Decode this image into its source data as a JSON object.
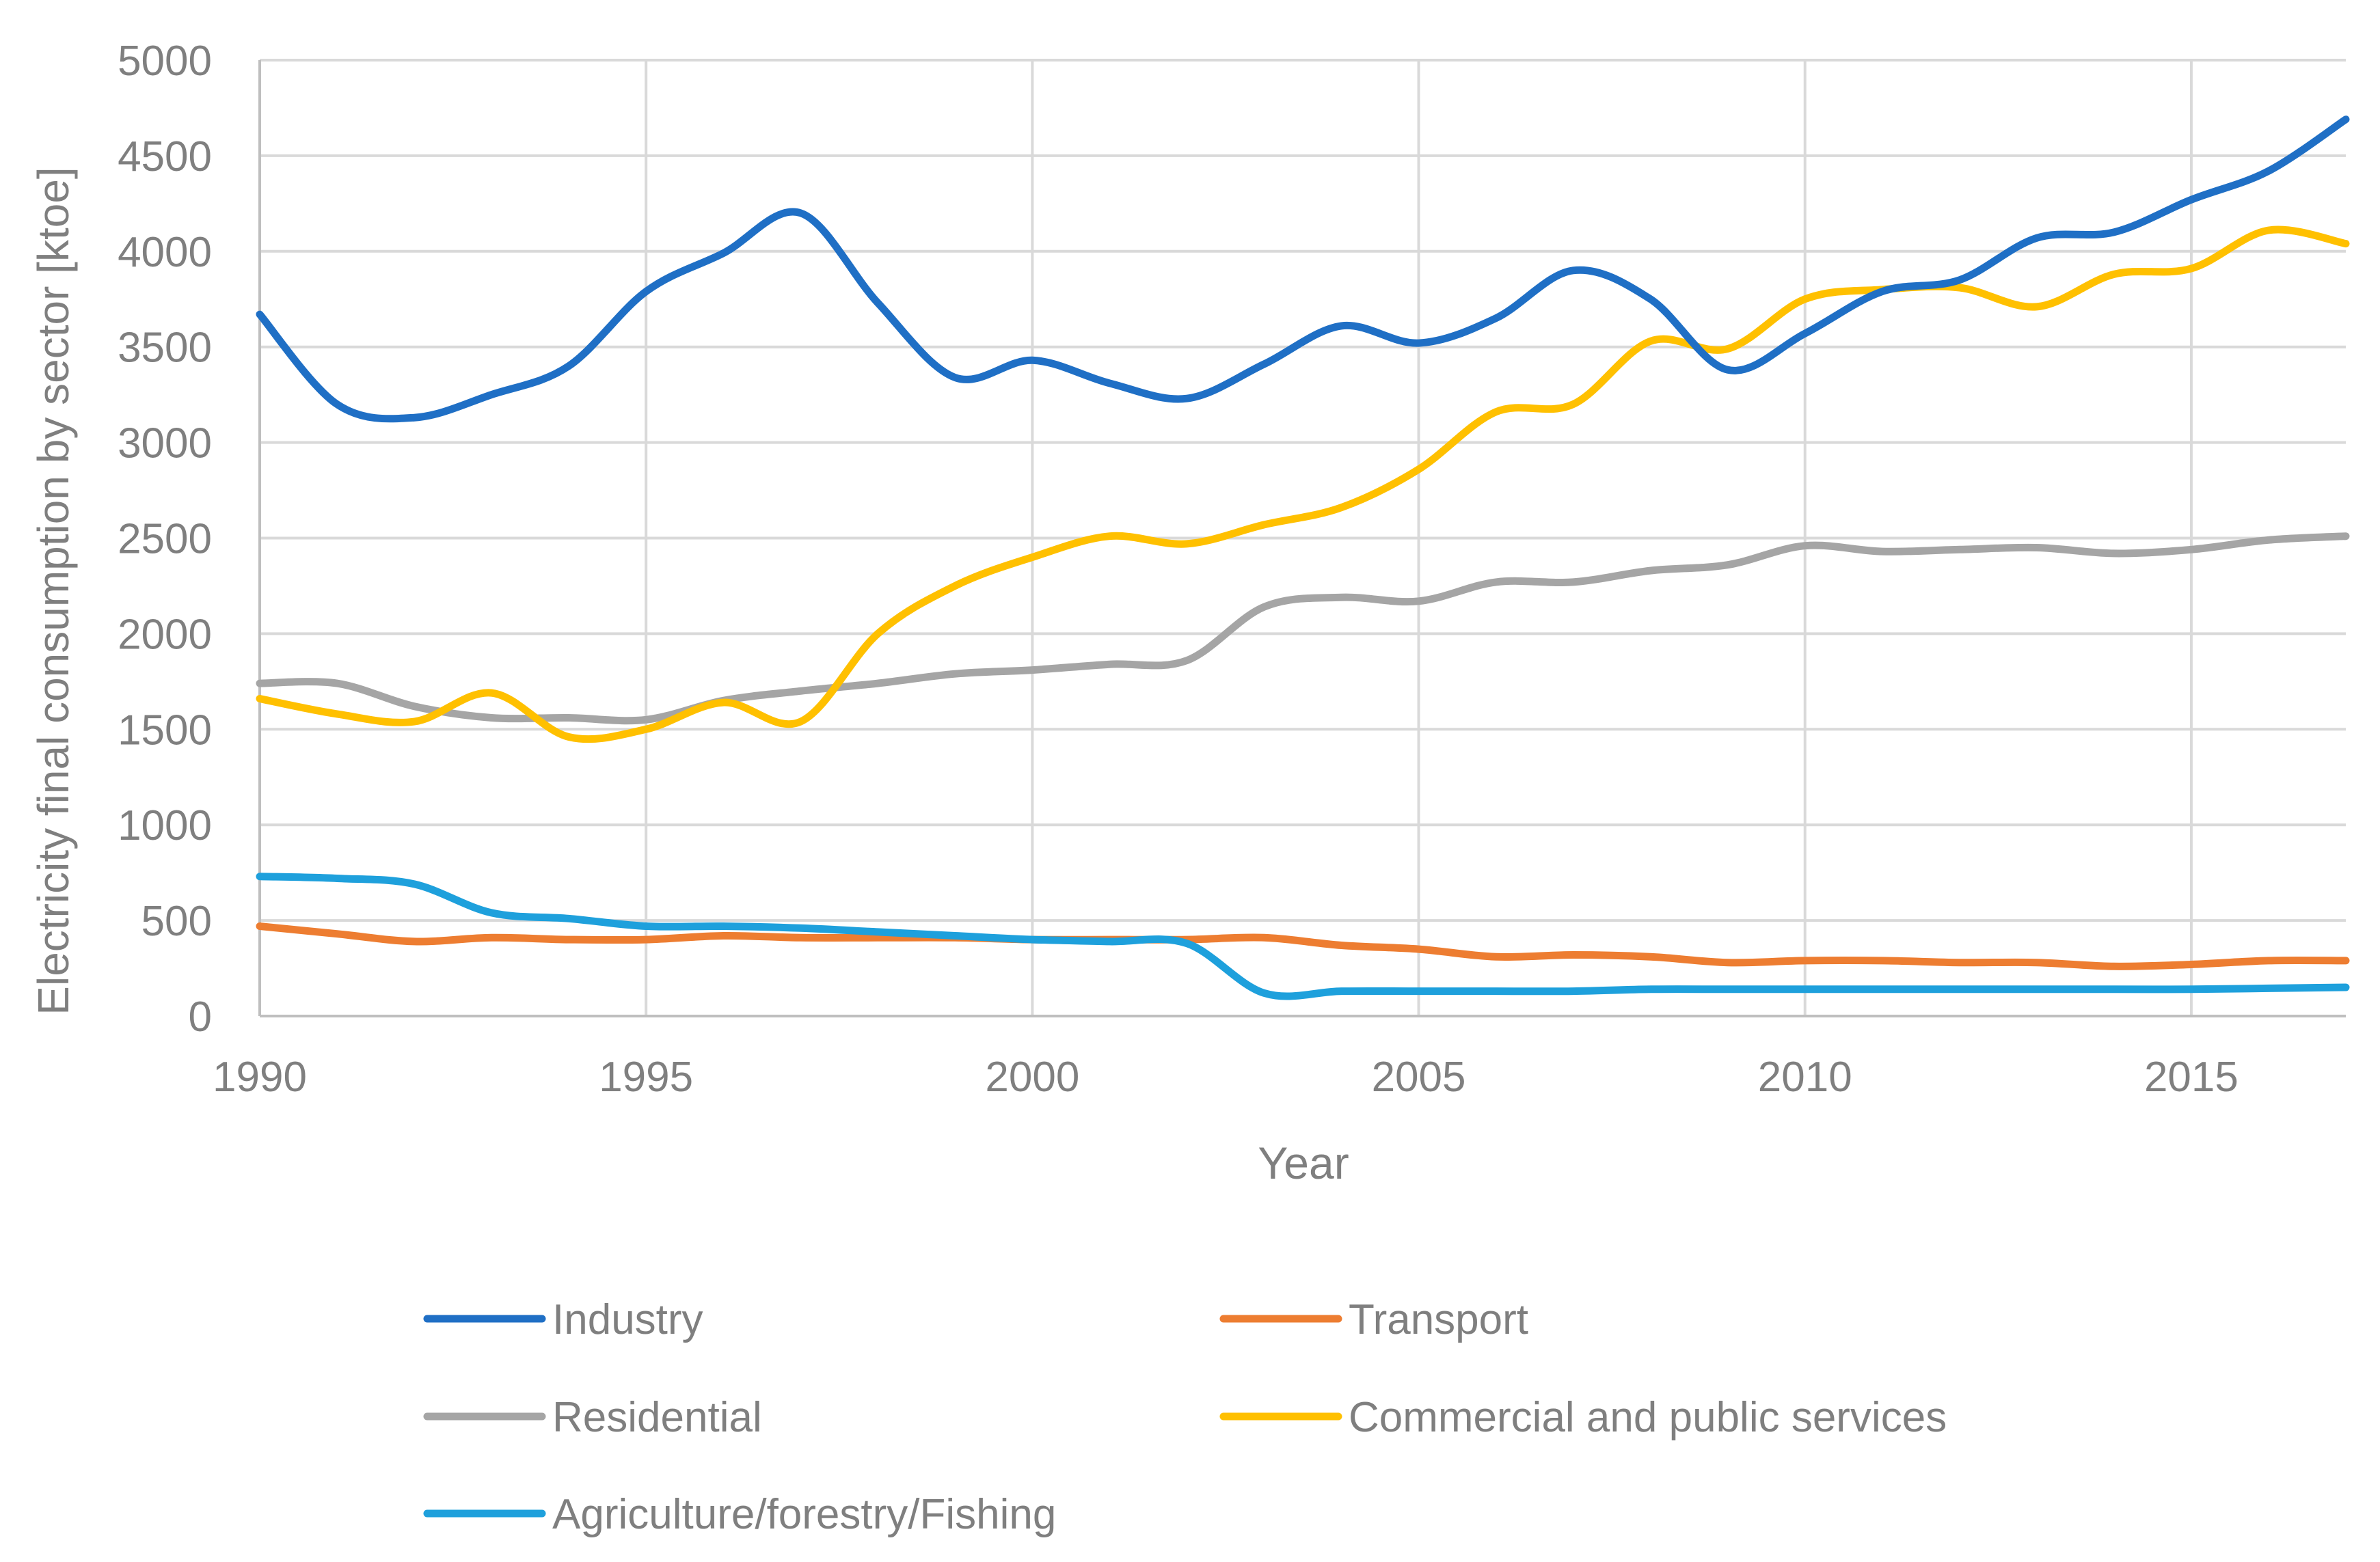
{
  "chart_data": {
    "type": "line",
    "title": "",
    "xlabel": "Year",
    "ylabel": "Electricity final consumption by sector [ktoe]",
    "xlim": [
      1990,
      2017
    ],
    "ylim": [
      0,
      5000
    ],
    "x_ticks": [
      1990,
      1995,
      2000,
      2005,
      2010,
      2015
    ],
    "y_ticks": [
      0,
      500,
      1000,
      1500,
      2000,
      2500,
      3000,
      3500,
      4000,
      4500,
      5000
    ],
    "grid": true,
    "legend_position": "bottom",
    "x": [
      1990,
      1991,
      1992,
      1993,
      1994,
      1995,
      1996,
      1997,
      1998,
      1999,
      2000,
      2001,
      2002,
      2003,
      2004,
      2005,
      2006,
      2007,
      2008,
      2009,
      2010,
      2011,
      2012,
      2013,
      2014,
      2015,
      2016,
      2017
    ],
    "series": [
      {
        "name": "Industry",
        "color": "#1f6fc5",
        "values": [
          3670,
          3200,
          3130,
          3250,
          3400,
          3790,
          3990,
          4200,
          3730,
          3340,
          3430,
          3310,
          3230,
          3410,
          3610,
          3520,
          3650,
          3900,
          3750,
          3380,
          3570,
          3790,
          3850,
          4070,
          4100,
          4270,
          4420,
          4690
        ]
      },
      {
        "name": "Transport",
        "color": "#ed7d31",
        "values": [
          470,
          430,
          390,
          410,
          400,
          400,
          420,
          410,
          410,
          410,
          400,
          400,
          400,
          410,
          370,
          350,
          310,
          320,
          310,
          280,
          290,
          290,
          280,
          280,
          260,
          270,
          290,
          290
        ]
      },
      {
        "name": "Residential",
        "color": "#a5a5a5",
        "values": [
          1740,
          1740,
          1620,
          1560,
          1560,
          1550,
          1650,
          1700,
          1740,
          1790,
          1810,
          1840,
          1860,
          2140,
          2190,
          2170,
          2270,
          2270,
          2330,
          2360,
          2460,
          2430,
          2440,
          2450,
          2420,
          2440,
          2490,
          2510
        ]
      },
      {
        "name": "Commercial and public services",
        "color": "#ffc000",
        "values": [
          1660,
          1580,
          1540,
          1690,
          1460,
          1500,
          1640,
          1540,
          2000,
          2250,
          2400,
          2510,
          2470,
          2570,
          2660,
          2860,
          3160,
          3200,
          3530,
          3490,
          3750,
          3800,
          3810,
          3710,
          3880,
          3910,
          4110,
          4040
        ]
      },
      {
        "name": "Agriculture/forestry/Fishing",
        "color": "#1ea0dc",
        "values": [
          730,
          720,
          690,
          540,
          510,
          470,
          470,
          460,
          440,
          420,
          400,
          390,
          380,
          120,
          130,
          130,
          130,
          130,
          140,
          140,
          140,
          140,
          140,
          140,
          140,
          140,
          145,
          150
        ]
      }
    ]
  }
}
